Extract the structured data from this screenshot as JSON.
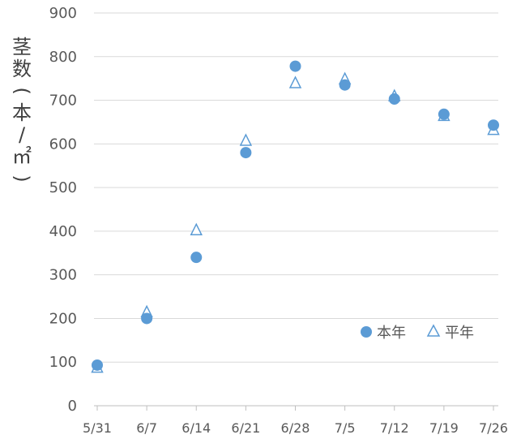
{
  "chart_data": {
    "type": "scatter",
    "title": "",
    "xlabel": "",
    "ylabel": "茎数(本/㎡)",
    "ylim": [
      0,
      900
    ],
    "yticks": [
      0,
      100,
      200,
      300,
      400,
      500,
      600,
      700,
      800,
      900
    ],
    "categories": [
      "5/31",
      "6/7",
      "6/14",
      "6/21",
      "6/28",
      "7/5",
      "7/12",
      "7/19",
      "7/26"
    ],
    "series": [
      {
        "name": "本年",
        "marker": "filled-circle",
        "color": "#5b9bd5",
        "x": [
          "5/31",
          "6/7",
          "6/14",
          "6/21",
          "6/28",
          "7/5",
          "7/12",
          "7/19",
          "7/26"
        ],
        "values": [
          93,
          200,
          340,
          580,
          778,
          735,
          703,
          668,
          643
        ]
      },
      {
        "name": "平年",
        "marker": "hollow-triangle",
        "color": "#5b9bd5",
        "x": [
          "5/31",
          "6/7",
          "6/14",
          "6/21",
          "6/28",
          "7/5",
          "7/12",
          "7/19",
          "7/26"
        ],
        "values": [
          88,
          215,
          403,
          608,
          740,
          749,
          710,
          665,
          633
        ]
      }
    ],
    "grid": true,
    "legend": "inside-lower-right"
  }
}
